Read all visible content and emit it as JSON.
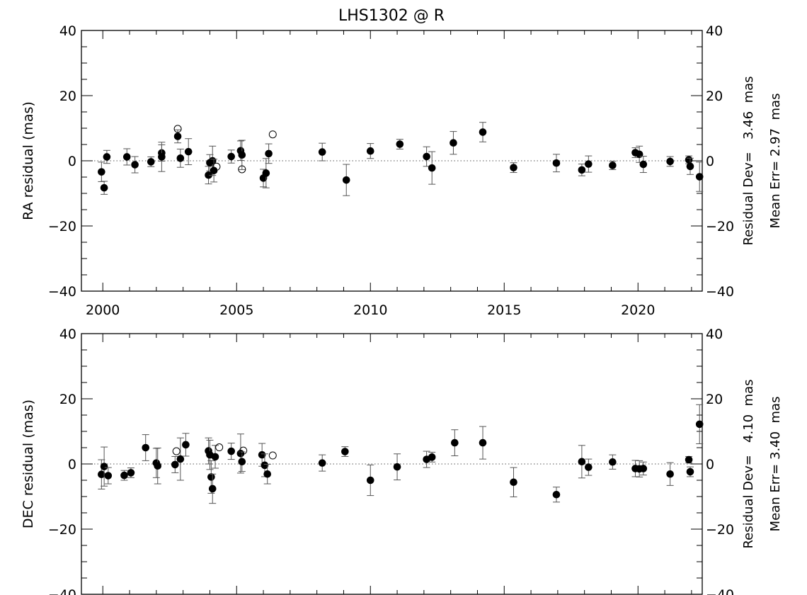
{
  "page": {
    "title": "LHS1302 @ R",
    "background": "#ffffff",
    "ink": "#000000",
    "errorbar_color": "#555555"
  },
  "chart_data": [
    {
      "id": "ra",
      "type": "scatter",
      "title": "LHS1302 @ R",
      "xlabel": "",
      "ylabel": "RA residual (mas)",
      "xlim": [
        1999.2,
        2022.4
      ],
      "ylim": [
        -40,
        40
      ],
      "x_ticks": [
        2000,
        2005,
        2010,
        2015,
        2020
      ],
      "x_tick_labels": [
        "2000",
        "2005",
        "2010",
        "2015",
        "2020"
      ],
      "y_ticks": [
        -40,
        -20,
        0,
        20,
        40
      ],
      "y_tick_labels": [
        "−40",
        "−20",
        "0",
        "20",
        "40"
      ],
      "right_y_tick_labels": [
        "−40",
        "−20",
        "0",
        "20",
        "40"
      ],
      "zero_line": "dotted",
      "grid": false,
      "side_text": [
        "Residual Dev=   3.46  mas",
        "Mean Err= 2.97  mas"
      ],
      "series": [
        {
          "marker": "filled-circle",
          "points": [
            {
              "x": 1999.95,
              "y": -3.4,
              "err": 3.0
            },
            {
              "x": 2000.05,
              "y": -8.3,
              "err": 2.0
            },
            {
              "x": 2000.15,
              "y": 1.2,
              "err": 2.0
            },
            {
              "x": 2000.9,
              "y": 1.2,
              "err": 2.5
            },
            {
              "x": 2001.2,
              "y": -1.2,
              "err": 2.5
            },
            {
              "x": 2001.8,
              "y": -0.3,
              "err": 1.5
            },
            {
              "x": 2002.2,
              "y": 2.4,
              "err": 2.5
            },
            {
              "x": 2002.2,
              "y": 1.2,
              "err": 4.5
            },
            {
              "x": 2002.8,
              "y": 7.5,
              "err": 2.0
            },
            {
              "x": 2002.9,
              "y": 0.8,
              "err": 2.8
            },
            {
              "x": 2003.2,
              "y": 2.8,
              "err": 4.0
            },
            {
              "x": 2003.95,
              "y": -4.4,
              "err": 2.7
            },
            {
              "x": 2004.0,
              "y": -0.6,
              "err": 2.5
            },
            {
              "x": 2004.1,
              "y": 0.0,
              "err": 4.5
            },
            {
              "x": 2004.15,
              "y": -3.0,
              "err": 3.5
            },
            {
              "x": 2004.8,
              "y": 1.3,
              "err": 2.0
            },
            {
              "x": 2005.15,
              "y": 3.1,
              "err": 3.0
            },
            {
              "x": 2005.2,
              "y": 1.8,
              "err": 4.5
            },
            {
              "x": 2006.0,
              "y": -5.3,
              "err": 2.7
            },
            {
              "x": 2006.1,
              "y": -3.8,
              "err": 4.5
            },
            {
              "x": 2006.2,
              "y": 2.2,
              "err": 3.0
            },
            {
              "x": 2008.2,
              "y": 2.7,
              "err": 2.7
            },
            {
              "x": 2009.1,
              "y": -5.9,
              "err": 4.8
            },
            {
              "x": 2010.0,
              "y": 3.0,
              "err": 2.3
            },
            {
              "x": 2011.1,
              "y": 5.1,
              "err": 1.5
            },
            {
              "x": 2012.1,
              "y": 1.3,
              "err": 3.0
            },
            {
              "x": 2012.3,
              "y": -2.2,
              "err": 5.0
            },
            {
              "x": 2013.1,
              "y": 5.5,
              "err": 3.5
            },
            {
              "x": 2014.2,
              "y": 8.8,
              "err": 3.0
            },
            {
              "x": 2015.35,
              "y": -2.1,
              "err": 1.5
            },
            {
              "x": 2016.95,
              "y": -0.7,
              "err": 2.7
            },
            {
              "x": 2017.9,
              "y": -2.8,
              "err": 1.8
            },
            {
              "x": 2018.15,
              "y": -1.0,
              "err": 2.5
            },
            {
              "x": 2019.05,
              "y": -1.4,
              "err": 1.3
            },
            {
              "x": 2019.9,
              "y": 2.5,
              "err": 1.5
            },
            {
              "x": 2020.05,
              "y": 2.0,
              "err": 2.5
            },
            {
              "x": 2020.2,
              "y": -1.1,
              "err": 2.5
            },
            {
              "x": 2021.2,
              "y": -0.2,
              "err": 1.5
            },
            {
              "x": 2021.9,
              "y": 0.3,
              "err": 1.2
            },
            {
              "x": 2021.95,
              "y": -1.7,
              "err": 2.5
            },
            {
              "x": 2022.3,
              "y": -4.9,
              "err": 4.5
            }
          ]
        },
        {
          "marker": "open-circle",
          "points": [
            {
              "x": 2002.8,
              "y": 9.8
            },
            {
              "x": 2004.25,
              "y": -1.8
            },
            {
              "x": 2005.2,
              "y": -2.6
            },
            {
              "x": 2006.35,
              "y": 8.1
            }
          ]
        }
      ]
    },
    {
      "id": "dec",
      "type": "scatter",
      "xlabel": "",
      "ylabel": "DEC residual (mas)",
      "xlim": [
        1999.2,
        2022.4
      ],
      "ylim": [
        -40,
        40
      ],
      "x_ticks": [
        2000,
        2005,
        2010,
        2015,
        2020
      ],
      "y_ticks": [
        -40,
        -20,
        0,
        20,
        40
      ],
      "y_tick_labels": [
        "−40",
        "−20",
        "0",
        "20",
        "40"
      ],
      "right_y_tick_labels": [
        "−40",
        "−20",
        "0",
        "20",
        "40"
      ],
      "zero_line": "dotted",
      "grid": false,
      "side_text": [
        "Residual Dev=   4.10  mas",
        "Mean Err= 3.40  mas"
      ],
      "series": [
        {
          "marker": "filled-circle",
          "points": [
            {
              "x": 1999.95,
              "y": -3.2,
              "err": 4.5
            },
            {
              "x": 2000.05,
              "y": -0.8,
              "err": 6.0
            },
            {
              "x": 2000.2,
              "y": -3.6,
              "err": 2.5
            },
            {
              "x": 2000.8,
              "y": -3.5,
              "err": 1.5
            },
            {
              "x": 2001.05,
              "y": -2.7,
              "err": 1.5
            },
            {
              "x": 2001.6,
              "y": 5.0,
              "err": 4.0
            },
            {
              "x": 2002.0,
              "y": 0.3,
              "err": 4.5
            },
            {
              "x": 2002.05,
              "y": -0.6,
              "err": 5.5
            },
            {
              "x": 2002.7,
              "y": -0.2,
              "err": 2.5
            },
            {
              "x": 2002.9,
              "y": 1.5,
              "err": 6.5
            },
            {
              "x": 2003.1,
              "y": 5.9,
              "err": 3.5
            },
            {
              "x": 2003.95,
              "y": 4.0,
              "err": 4.0
            },
            {
              "x": 2004.0,
              "y": 2.8,
              "err": 4.5
            },
            {
              "x": 2004.05,
              "y": -4.0,
              "err": 5.0
            },
            {
              "x": 2004.1,
              "y": -7.6,
              "err": 4.5
            },
            {
              "x": 2004.2,
              "y": 2.2,
              "err": 3.5
            },
            {
              "x": 2004.8,
              "y": 3.9,
              "err": 2.5
            },
            {
              "x": 2005.15,
              "y": 3.2,
              "err": 6.0
            },
            {
              "x": 2005.2,
              "y": 0.7,
              "err": 3.0
            },
            {
              "x": 2005.95,
              "y": 2.8,
              "err": 3.5
            },
            {
              "x": 2006.05,
              "y": -0.4,
              "err": 3.5
            },
            {
              "x": 2006.15,
              "y": -3.1,
              "err": 3.0
            },
            {
              "x": 2008.2,
              "y": 0.3,
              "err": 2.5
            },
            {
              "x": 2009.05,
              "y": 3.8,
              "err": 1.5
            },
            {
              "x": 2010.0,
              "y": -5.0,
              "err": 4.7
            },
            {
              "x": 2011.0,
              "y": -0.9,
              "err": 4.0
            },
            {
              "x": 2012.1,
              "y": 1.4,
              "err": 2.5
            },
            {
              "x": 2012.3,
              "y": 2.1,
              "err": 1.5
            },
            {
              "x": 2013.15,
              "y": 6.5,
              "err": 4.0
            },
            {
              "x": 2014.2,
              "y": 6.5,
              "err": 5.0
            },
            {
              "x": 2015.35,
              "y": -5.6,
              "err": 4.5
            },
            {
              "x": 2016.95,
              "y": -9.4,
              "err": 2.3
            },
            {
              "x": 2017.9,
              "y": 0.7,
              "err": 5.0
            },
            {
              "x": 2018.15,
              "y": -1.0,
              "err": 2.5
            },
            {
              "x": 2019.05,
              "y": 0.6,
              "err": 2.2
            },
            {
              "x": 2019.9,
              "y": -1.4,
              "err": 2.5
            },
            {
              "x": 2020.05,
              "y": -1.5,
              "err": 2.5
            },
            {
              "x": 2020.2,
              "y": -1.4,
              "err": 2.0
            },
            {
              "x": 2021.2,
              "y": -3.1,
              "err": 3.5
            },
            {
              "x": 2021.9,
              "y": 1.3,
              "err": 1.0
            },
            {
              "x": 2021.95,
              "y": -2.4,
              "err": 1.5
            },
            {
              "x": 2022.3,
              "y": 12.2,
              "err": 6.0
            }
          ]
        },
        {
          "marker": "open-circle",
          "points": [
            {
              "x": 2002.75,
              "y": 3.9
            },
            {
              "x": 2004.35,
              "y": 5.1
            },
            {
              "x": 2005.25,
              "y": 4.1
            },
            {
              "x": 2006.35,
              "y": 2.6
            }
          ]
        }
      ]
    }
  ]
}
